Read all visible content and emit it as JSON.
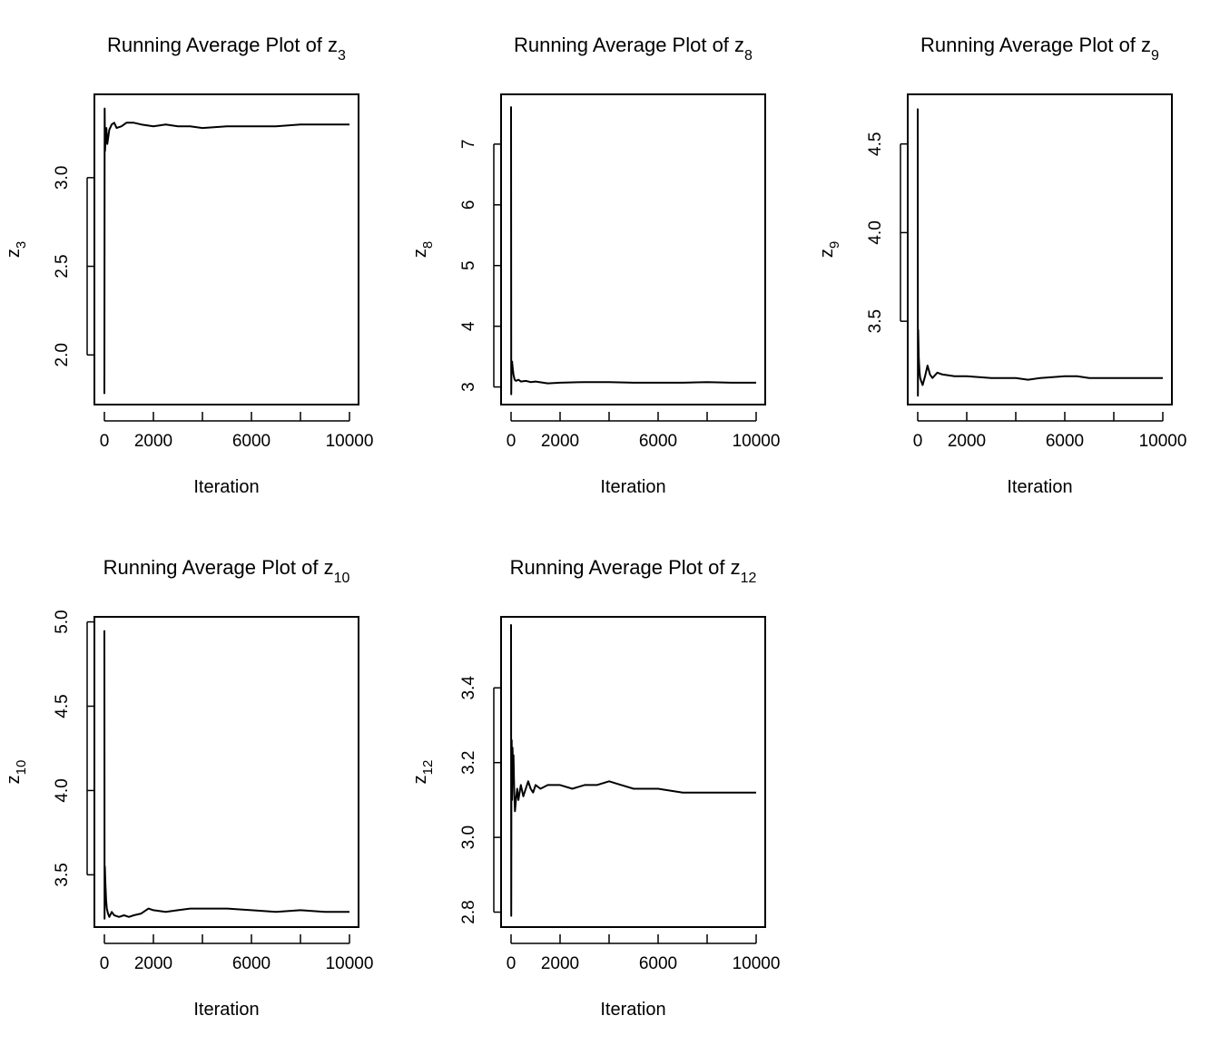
{
  "chart_data": [
    {
      "type": "line",
      "title": "Running Average Plot of z",
      "title_subscript": "3",
      "xlabel": "Iteration",
      "ylabel": "z",
      "ylabel_subscript": "3",
      "xlim": [
        0,
        10000
      ],
      "ylim": [
        1.72,
        3.47
      ],
      "x_ticks": [
        0,
        2000,
        4000,
        6000,
        8000,
        10000
      ],
      "x_tick_labels": [
        "0",
        "2000",
        "",
        "6000",
        "",
        "10000"
      ],
      "y_ticks": [
        2.0,
        2.5,
        3.0
      ],
      "y_tick_labels": [
        "2.0",
        "2.5",
        "3.0"
      ],
      "series": [
        {
          "x": [
            1,
            10,
            25,
            50,
            80,
            120,
            200,
            300,
            400,
            500,
            700,
            900,
            1200,
            1500,
            2000,
            2500,
            3000,
            3500,
            4000,
            5000,
            6000,
            7000,
            8000,
            9000,
            10000
          ],
          "y": [
            1.78,
            3.39,
            3.15,
            3.22,
            3.28,
            3.19,
            3.27,
            3.3,
            3.31,
            3.28,
            3.29,
            3.31,
            3.31,
            3.3,
            3.29,
            3.3,
            3.29,
            3.29,
            3.28,
            3.29,
            3.29,
            3.29,
            3.3,
            3.3,
            3.3
          ]
        }
      ]
    },
    {
      "type": "line",
      "title": "Running Average Plot of z",
      "title_subscript": "8",
      "xlabel": "Iteration",
      "ylabel": "z",
      "ylabel_subscript": "8",
      "xlim": [
        0,
        10000
      ],
      "ylim": [
        2.71,
        7.82
      ],
      "x_ticks": [
        0,
        2000,
        4000,
        6000,
        8000,
        10000
      ],
      "x_tick_labels": [
        "0",
        "2000",
        "",
        "6000",
        "",
        "10000"
      ],
      "y_ticks": [
        3,
        4,
        5,
        6,
        7
      ],
      "y_tick_labels": [
        "3",
        "4",
        "5",
        "6",
        "7"
      ],
      "series": [
        {
          "x": [
            1,
            8,
            20,
            40,
            70,
            100,
            150,
            200,
            300,
            400,
            600,
            800,
            1000,
            1500,
            2000,
            3000,
            4000,
            5000,
            6000,
            7000,
            8000,
            9000,
            10000
          ],
          "y": [
            7.62,
            2.88,
            3.4,
            3.42,
            3.3,
            3.2,
            3.12,
            3.1,
            3.12,
            3.09,
            3.1,
            3.08,
            3.09,
            3.06,
            3.07,
            3.08,
            3.08,
            3.07,
            3.07,
            3.07,
            3.08,
            3.07,
            3.07
          ]
        }
      ]
    },
    {
      "type": "line",
      "title": "Running Average Plot of z",
      "title_subscript": "9",
      "xlabel": "Iteration",
      "ylabel": "z",
      "ylabel_subscript": "9",
      "xlim": [
        0,
        10000
      ],
      "ylim": [
        3.03,
        4.78
      ],
      "x_ticks": [
        0,
        2000,
        4000,
        6000,
        8000,
        10000
      ],
      "x_tick_labels": [
        "0",
        "2000",
        "",
        "6000",
        "",
        "10000"
      ],
      "y_ticks": [
        3.5,
        4.0,
        4.5
      ],
      "y_tick_labels": [
        "3.5",
        "4.0",
        "4.5"
      ],
      "series": [
        {
          "x": [
            1,
            8,
            20,
            40,
            70,
            100,
            150,
            200,
            300,
            400,
            500,
            600,
            800,
            1000,
            1500,
            2000,
            3000,
            4000,
            4500,
            5000,
            6000,
            6500,
            7000,
            8000,
            9000,
            10000
          ],
          "y": [
            4.7,
            3.08,
            3.45,
            3.3,
            3.22,
            3.18,
            3.16,
            3.14,
            3.19,
            3.25,
            3.2,
            3.18,
            3.21,
            3.2,
            3.19,
            3.19,
            3.18,
            3.18,
            3.17,
            3.18,
            3.19,
            3.19,
            3.18,
            3.18,
            3.18,
            3.18
          ]
        }
      ]
    },
    {
      "type": "line",
      "title": "Running Average Plot of z",
      "title_subscript": "10",
      "xlabel": "Iteration",
      "ylabel": "z",
      "ylabel_subscript": "10",
      "xlim": [
        0,
        10000
      ],
      "ylim": [
        3.19,
        5.03
      ],
      "x_ticks": [
        0,
        2000,
        4000,
        6000,
        8000,
        10000
      ],
      "x_tick_labels": [
        "0",
        "2000",
        "",
        "6000",
        "",
        "10000"
      ],
      "y_ticks": [
        3.5,
        4.0,
        4.5,
        5.0
      ],
      "y_tick_labels": [
        "3.5",
        "4.0",
        "4.5",
        "5.0"
      ],
      "series": [
        {
          "x": [
            1,
            8,
            20,
            40,
            70,
            100,
            150,
            200,
            300,
            400,
            600,
            800,
            1000,
            1200,
            1500,
            1800,
            2000,
            2500,
            3000,
            3500,
            4000,
            4500,
            5000,
            6000,
            7000,
            8000,
            9000,
            10000
          ],
          "y": [
            4.95,
            3.24,
            3.55,
            3.45,
            3.35,
            3.3,
            3.27,
            3.25,
            3.28,
            3.26,
            3.25,
            3.26,
            3.25,
            3.26,
            3.27,
            3.3,
            3.29,
            3.28,
            3.29,
            3.3,
            3.3,
            3.3,
            3.3,
            3.29,
            3.28,
            3.29,
            3.28,
            3.28
          ]
        }
      ]
    },
    {
      "type": "line",
      "title": "Running Average Plot of z",
      "title_subscript": "12",
      "xlabel": "Iteration",
      "ylabel": "z",
      "ylabel_subscript": "12",
      "xlim": [
        0,
        10000
      ],
      "ylim": [
        2.76,
        3.59
      ],
      "x_ticks": [
        0,
        2000,
        4000,
        6000,
        8000,
        10000
      ],
      "x_tick_labels": [
        "0",
        "2000",
        "",
        "6000",
        "",
        "10000"
      ],
      "y_ticks": [
        2.8,
        3.0,
        3.2,
        3.4
      ],
      "y_tick_labels": [
        "2.8",
        "3.0",
        "3.2",
        "3.4"
      ],
      "series": [
        {
          "x": [
            1,
            8,
            15,
            25,
            40,
            60,
            80,
            100,
            130,
            160,
            200,
            250,
            300,
            400,
            500,
            600,
            700,
            800,
            900,
            1000,
            1200,
            1500,
            2000,
            2500,
            3000,
            3500,
            4000,
            4500,
            5000,
            6000,
            7000,
            8000,
            9000,
            10000
          ],
          "y": [
            3.57,
            2.79,
            3.2,
            3.26,
            3.1,
            3.24,
            3.18,
            3.22,
            3.12,
            3.07,
            3.1,
            3.13,
            3.1,
            3.14,
            3.11,
            3.13,
            3.15,
            3.13,
            3.12,
            3.14,
            3.13,
            3.14,
            3.14,
            3.13,
            3.14,
            3.14,
            3.15,
            3.14,
            3.13,
            3.13,
            3.12,
            3.12,
            3.12,
            3.12
          ]
        }
      ]
    }
  ]
}
